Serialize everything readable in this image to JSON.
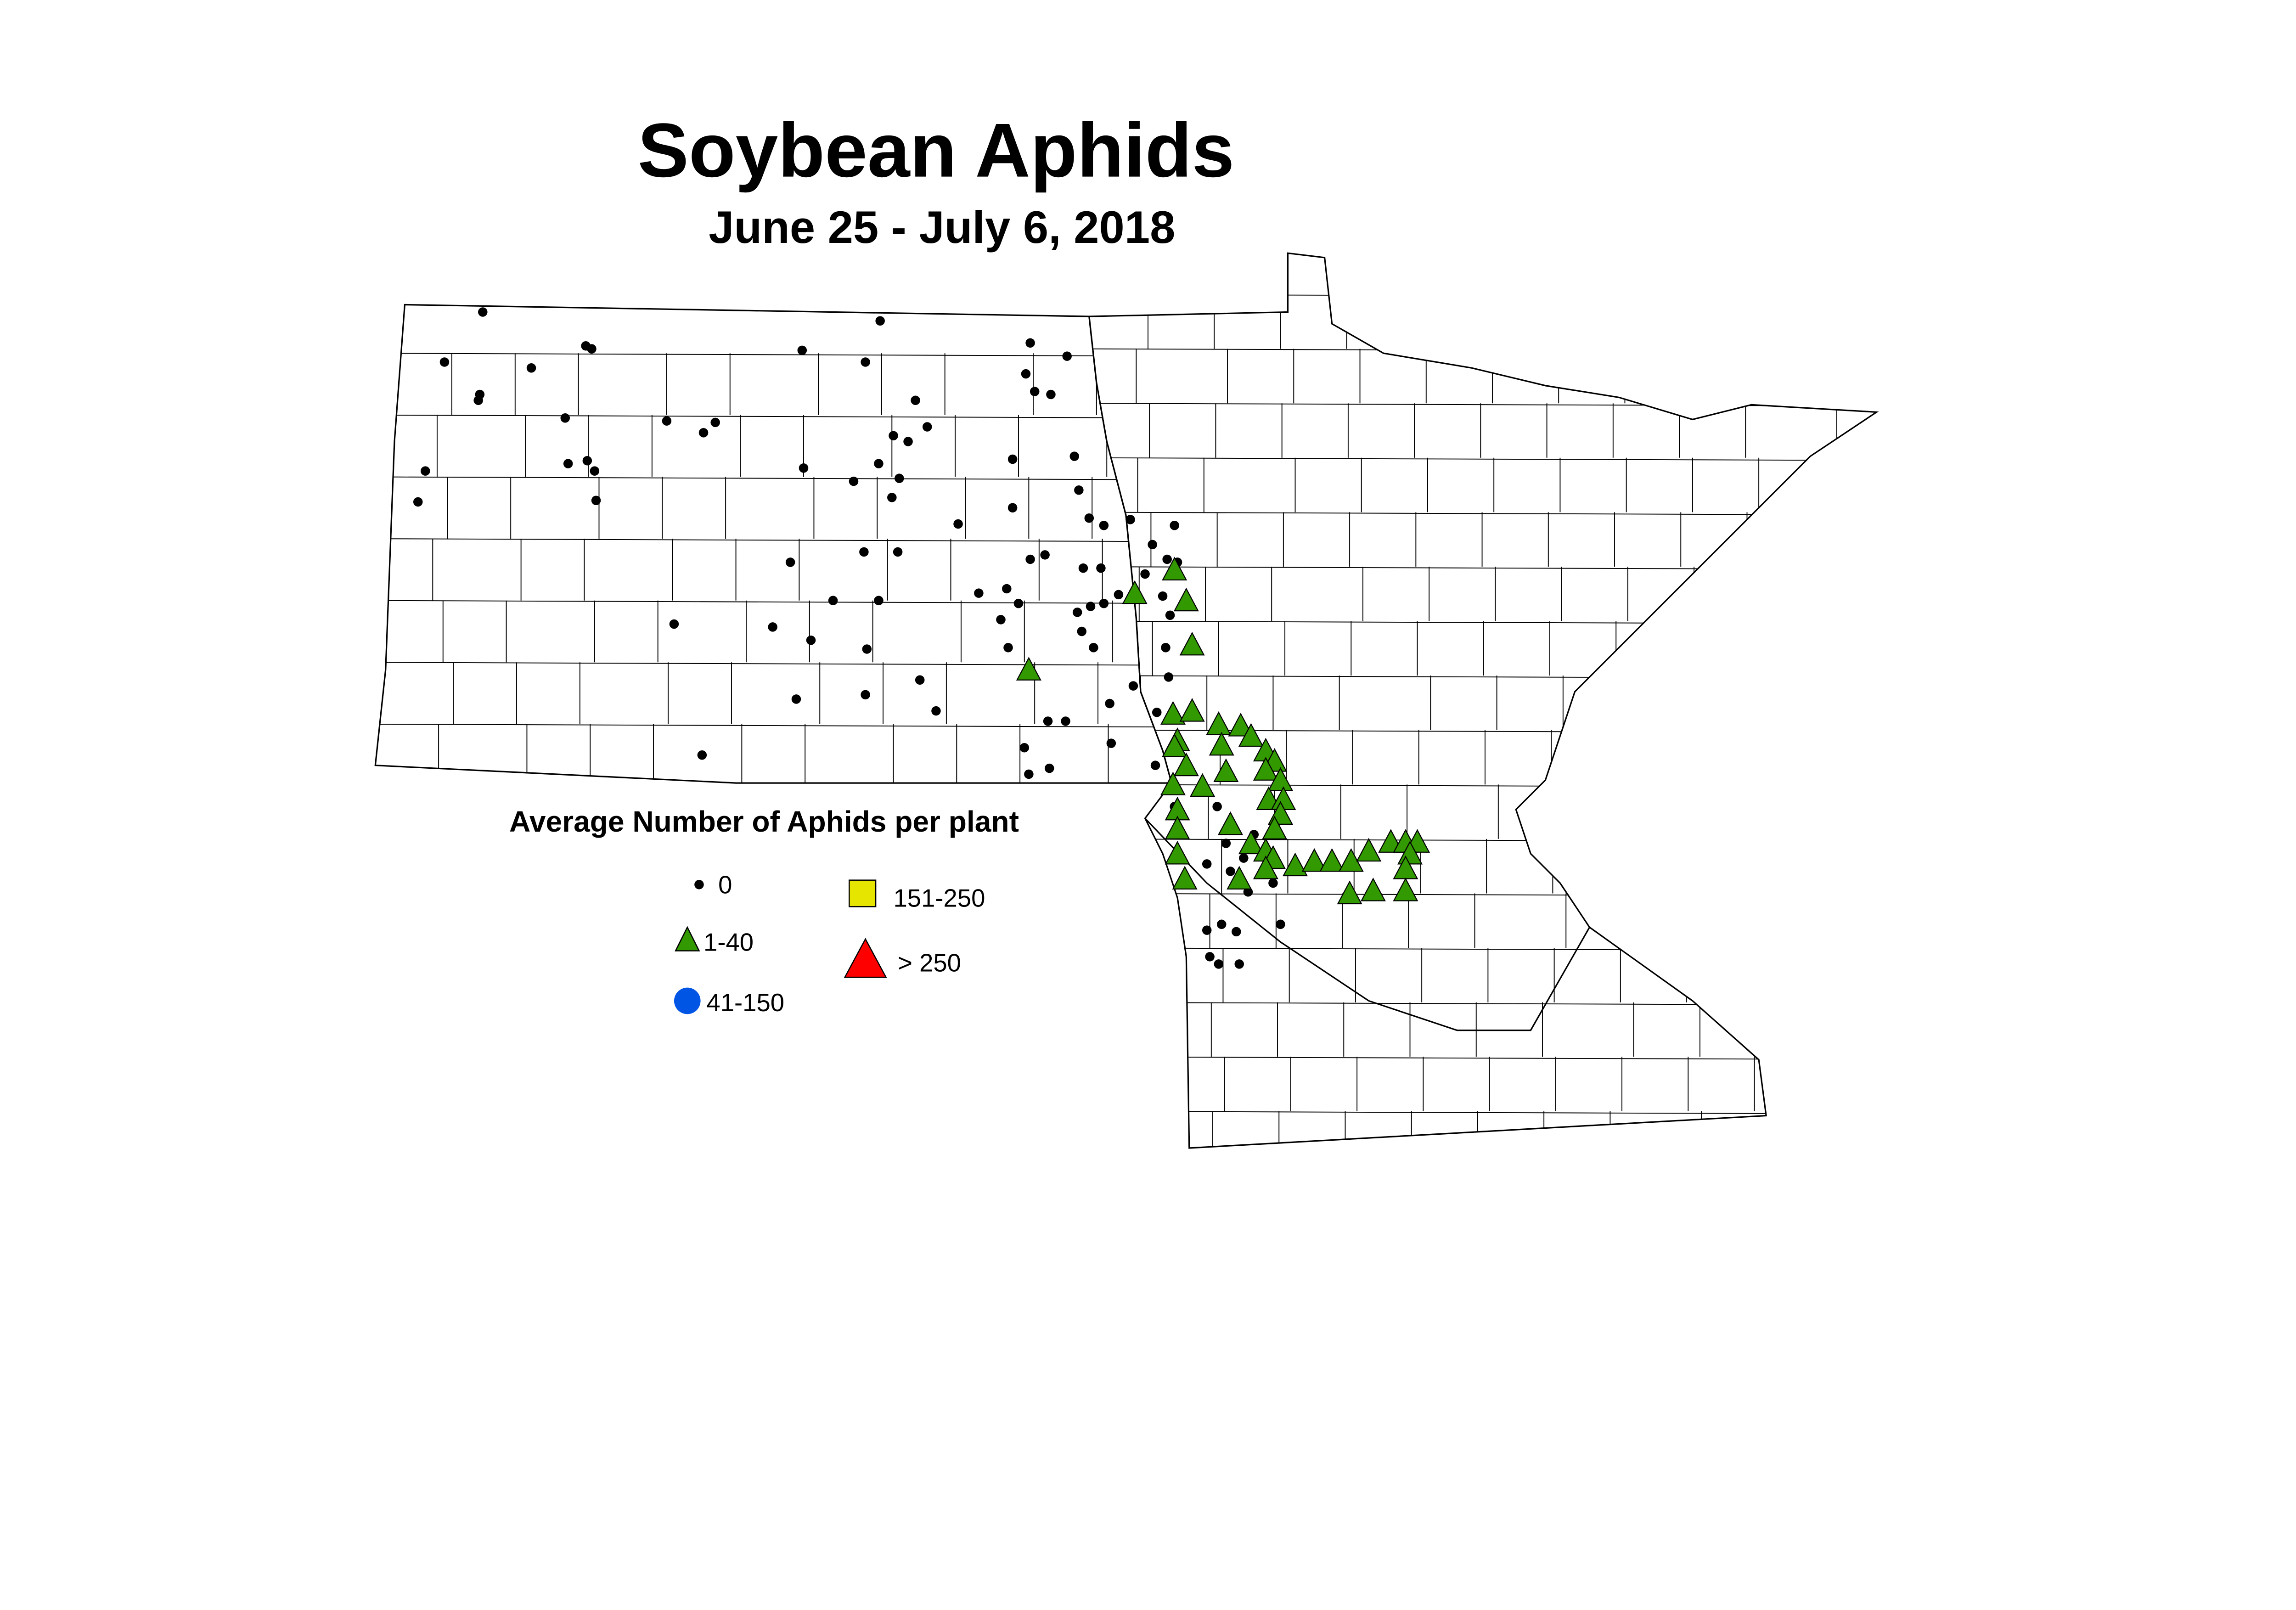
{
  "title": "Soybean Aphids",
  "subtitle": "June 25 - July 6, 2018",
  "legend": {
    "title": "Average Number of Aphids per plant",
    "items": [
      {
        "label": "0",
        "symbol": "dot",
        "color": "#000000"
      },
      {
        "label": "1-40",
        "symbol": "triangle",
        "color": "#339900"
      },
      {
        "label": "41-150",
        "symbol": "circle",
        "color": "#0055e5"
      },
      {
        "label": "151-250",
        "symbol": "square",
        "color": "#e5e500"
      },
      {
        "label": "> 250",
        "symbol": "triangle",
        "color": "#ff0000"
      }
    ]
  }
}
